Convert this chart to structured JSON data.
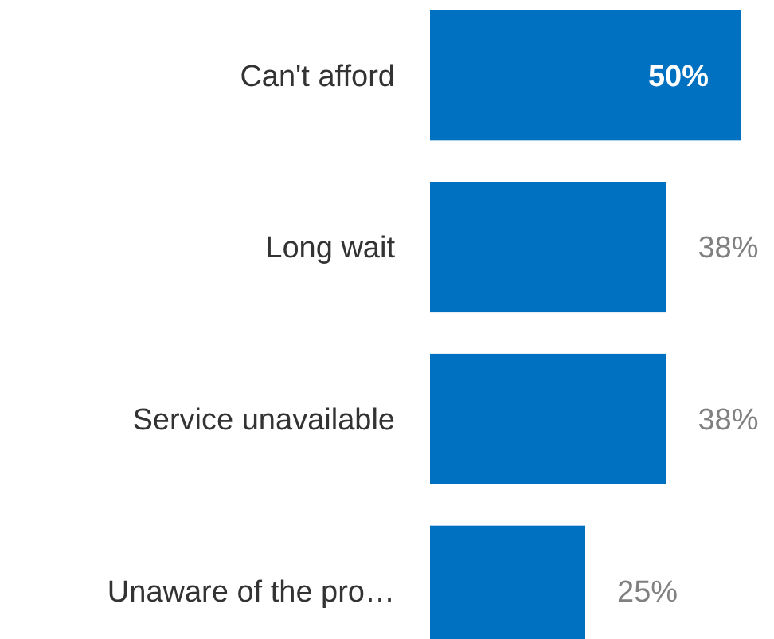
{
  "chart_data": {
    "type": "bar",
    "orientation": "horizontal",
    "categories": [
      "Can't afford",
      "Long wait",
      "Service unavailable",
      "Unaware of the pro…"
    ],
    "values": [
      50,
      38,
      38,
      25
    ],
    "value_labels": [
      "50%",
      "38%",
      "38%",
      "25%"
    ],
    "color": "#0070c0"
  }
}
